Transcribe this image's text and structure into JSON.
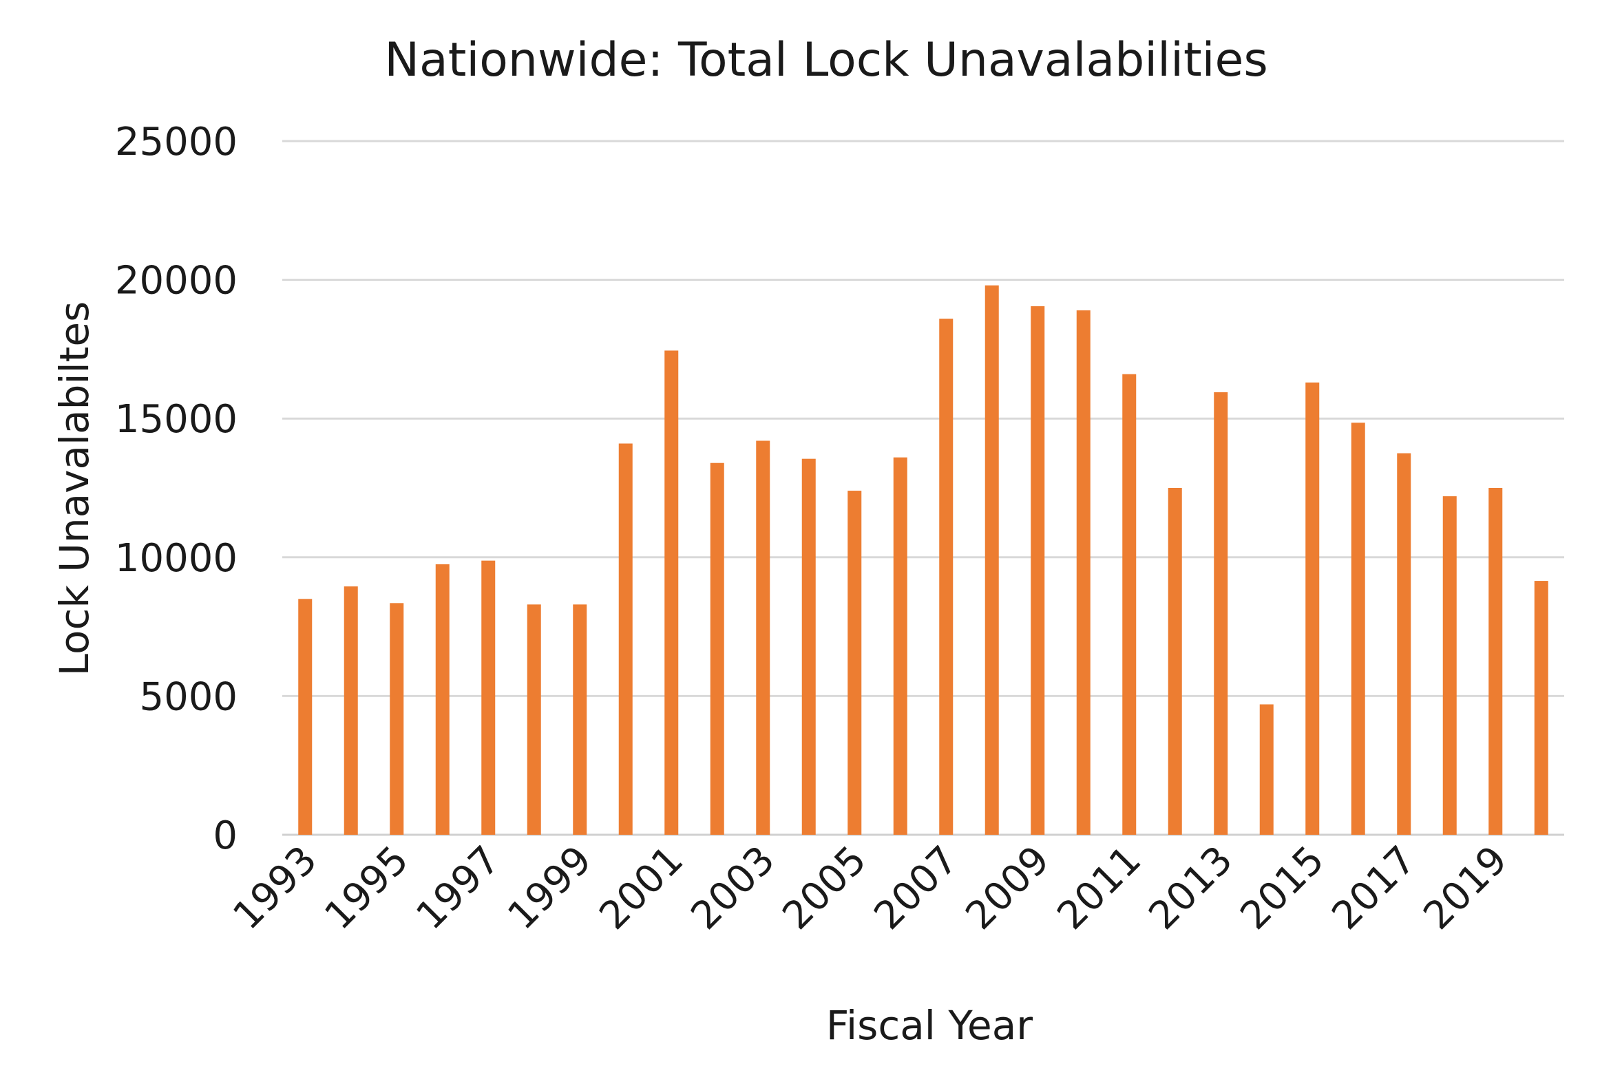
{
  "chart_data": {
    "type": "bar",
    "title": "Nationwide: Total Lock Unavalabilities",
    "xlabel": "Fiscal Year",
    "ylabel": "Lock Unavalabiltes",
    "ylim": [
      0,
      25000
    ],
    "yticks": [
      0,
      5000,
      10000,
      15000,
      20000,
      25000
    ],
    "grid": true,
    "legend": "none",
    "bar_color": "#ED7D31",
    "categories": [
      "1993",
      "1994",
      "1995",
      "1996",
      "1997",
      "1998",
      "1999",
      "2000",
      "2001",
      "2002",
      "2003",
      "2004",
      "2005",
      "2006",
      "2007",
      "2008",
      "2009",
      "2010",
      "2011",
      "2012",
      "2013",
      "2014",
      "2015",
      "2016",
      "2017",
      "2018",
      "2019",
      "2020"
    ],
    "x_tick_labels": [
      "1993",
      "1995",
      "1997",
      "1999",
      "2001",
      "2003",
      "2005",
      "2007",
      "2009",
      "2011",
      "2013",
      "2015",
      "2017",
      "2019"
    ],
    "values": [
      8500,
      8950,
      8350,
      9750,
      9880,
      8300,
      8300,
      14100,
      17450,
      13400,
      14200,
      13550,
      12400,
      13600,
      18600,
      19800,
      19050,
      18900,
      16600,
      12500,
      15950,
      4700,
      16300,
      14850,
      13750,
      12200,
      12500,
      9150
    ]
  }
}
